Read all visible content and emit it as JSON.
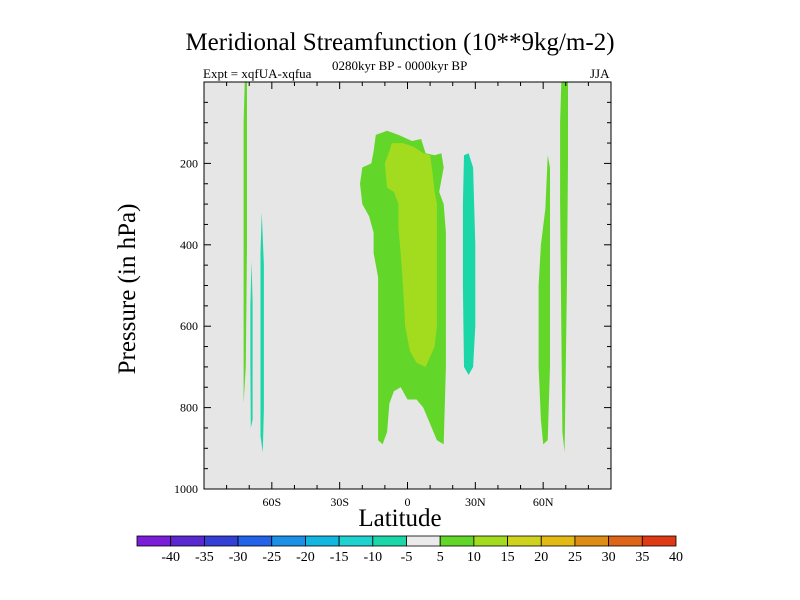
{
  "chart_data": {
    "type": "contour",
    "title": "Meridional Streamfunction (10**9kg/m-2)",
    "subtitle_left": "Expt = xqfUA-xqfua",
    "subtitle_center": "0280kyr BP - 0000kyr BP",
    "subtitle_right": "JJA",
    "xlabel": "Latitude",
    "ylabel": "Pressure (in hPa)",
    "xlim": [
      -90,
      90
    ],
    "ylim": [
      1000,
      0
    ],
    "x_ticks": [
      {
        "value": -60,
        "label": "60S"
      },
      {
        "value": -30,
        "label": "30S"
      },
      {
        "value": 0,
        "label": "0"
      },
      {
        "value": 30,
        "label": "30N"
      },
      {
        "value": 60,
        "label": "60N"
      }
    ],
    "y_ticks": [
      {
        "value": 200,
        "label": "200"
      },
      {
        "value": 400,
        "label": "400"
      },
      {
        "value": 600,
        "label": "600"
      },
      {
        "value": 800,
        "label": "800"
      },
      {
        "value": 1000,
        "label": "1000"
      }
    ],
    "background_color": "#e6e6e6",
    "regions": [
      {
        "name": "sh-polar-positive",
        "level": 5,
        "color": "#63d729",
        "points": [
          [
            -72,
            0
          ],
          [
            -71,
            0
          ],
          [
            -71,
            400
          ],
          [
            -71.5,
            700
          ],
          [
            -72.5,
            790
          ],
          [
            -72.5,
            500
          ],
          [
            -72.5,
            100
          ]
        ]
      },
      {
        "name": "sh-negative-a",
        "level": -5,
        "color": "#1bd6a6",
        "points": [
          [
            -69,
            440
          ],
          [
            -68.5,
            540
          ],
          [
            -68.5,
            830
          ],
          [
            -69.3,
            850
          ],
          [
            -69.5,
            700
          ],
          [
            -69.5,
            550
          ]
        ]
      },
      {
        "name": "sh-negative-b",
        "level": -5,
        "color": "#1bd6a6",
        "points": [
          [
            -64.5,
            320
          ],
          [
            -63.5,
            450
          ],
          [
            -63.5,
            800
          ],
          [
            -64,
            910
          ],
          [
            -65,
            870
          ],
          [
            -65,
            600
          ],
          [
            -65,
            420
          ]
        ]
      },
      {
        "name": "tropical-positive-outer",
        "level": 5,
        "color": "#63d729",
        "points": [
          [
            -14,
            130
          ],
          [
            -9,
            120
          ],
          [
            -4,
            130
          ],
          [
            2,
            145
          ],
          [
            6,
            140
          ],
          [
            8,
            175
          ],
          [
            12,
            180
          ],
          [
            15,
            175
          ],
          [
            16,
            210
          ],
          [
            14,
            270
          ],
          [
            16,
            300
          ],
          [
            17,
            370
          ],
          [
            17,
            500
          ],
          [
            17,
            700
          ],
          [
            16,
            890
          ],
          [
            13,
            880
          ],
          [
            10,
            840
          ],
          [
            7,
            800
          ],
          [
            4,
            780
          ],
          [
            0,
            780
          ],
          [
            -3,
            750
          ],
          [
            -6,
            760
          ],
          [
            -8,
            790
          ],
          [
            -9,
            860
          ],
          [
            -11,
            890
          ],
          [
            -13,
            880
          ],
          [
            -13,
            800
          ],
          [
            -13,
            700
          ],
          [
            -13,
            600
          ],
          [
            -13,
            480
          ],
          [
            -15,
            420
          ],
          [
            -15,
            370
          ],
          [
            -17,
            330
          ],
          [
            -20,
            300
          ],
          [
            -21,
            250
          ],
          [
            -20,
            210
          ],
          [
            -16,
            200
          ],
          [
            -15,
            170
          ]
        ]
      },
      {
        "name": "tropical-positive-inner",
        "level": 10,
        "color": "#a3dc1f",
        "points": [
          [
            -7,
            150
          ],
          [
            -2,
            150
          ],
          [
            3,
            160
          ],
          [
            7,
            175
          ],
          [
            10,
            180
          ],
          [
            11,
            220
          ],
          [
            12,
            270
          ],
          [
            13,
            300
          ],
          [
            13,
            400
          ],
          [
            13,
            500
          ],
          [
            13,
            600
          ],
          [
            12,
            650
          ],
          [
            8,
            700
          ],
          [
            4,
            690
          ],
          [
            1,
            660
          ],
          [
            -1,
            600
          ],
          [
            -2,
            500
          ],
          [
            -3,
            420
          ],
          [
            -4,
            360
          ],
          [
            -4,
            300
          ],
          [
            -6,
            270
          ],
          [
            -9,
            260
          ],
          [
            -10,
            200
          ],
          [
            -8,
            170
          ]
        ]
      },
      {
        "name": "nh-subtropical-negative",
        "level": -5,
        "color": "#1bd6a6",
        "points": [
          [
            25,
            180
          ],
          [
            27,
            175
          ],
          [
            29,
            210
          ],
          [
            30,
            400
          ],
          [
            30,
            600
          ],
          [
            29,
            700
          ],
          [
            27,
            720
          ],
          [
            25,
            700
          ],
          [
            24.5,
            500
          ],
          [
            24.5,
            300
          ]
        ]
      },
      {
        "name": "nh-highlat-positive-a",
        "level": 5,
        "color": "#63d729",
        "points": [
          [
            62,
            180
          ],
          [
            63,
            210
          ],
          [
            63,
            400
          ],
          [
            63,
            700
          ],
          [
            62,
            880
          ],
          [
            60,
            890
          ],
          [
            59,
            830
          ],
          [
            58,
            700
          ],
          [
            58,
            500
          ],
          [
            59,
            400
          ],
          [
            61,
            310
          ]
        ]
      },
      {
        "name": "nh-highlat-positive-b",
        "level": 5,
        "color": "#63d729",
        "points": [
          [
            68,
            0
          ],
          [
            71,
            0
          ],
          [
            71,
            200
          ],
          [
            70.5,
            500
          ],
          [
            70,
            700
          ],
          [
            69.5,
            910
          ],
          [
            68.5,
            860
          ],
          [
            68,
            600
          ],
          [
            67.5,
            300
          ],
          [
            67.5,
            100
          ]
        ]
      }
    ],
    "colorbar": {
      "labels": [
        "-40",
        "-35",
        "-30",
        "-25",
        "-20",
        "-15",
        "-10",
        "-5",
        "5",
        "10",
        "15",
        "20",
        "25",
        "30",
        "35",
        "40"
      ],
      "colors": [
        "#7a1ed9",
        "#5a28d0",
        "#3240d6",
        "#2263e8",
        "#1c8fe6",
        "#12b6e0",
        "#1fd2cf",
        "#1bd6a6",
        "#ebebeb",
        "#63d729",
        "#a3dc1f",
        "#cfd21e",
        "#e3b915",
        "#dd8c14",
        "#dd6418",
        "#de3a16"
      ]
    }
  }
}
